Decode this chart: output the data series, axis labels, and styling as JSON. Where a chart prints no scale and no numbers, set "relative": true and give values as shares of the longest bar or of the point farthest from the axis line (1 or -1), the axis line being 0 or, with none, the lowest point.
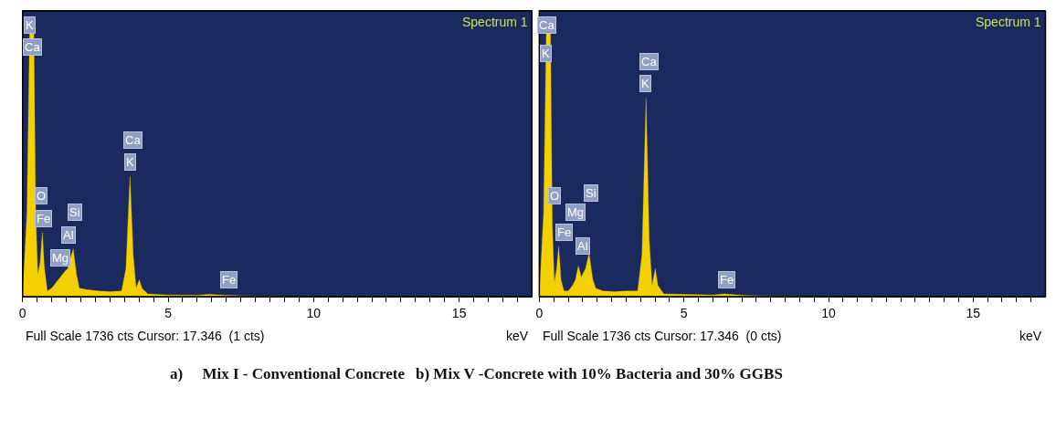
{
  "chart_data": [
    {
      "type": "area",
      "relative": true,
      "xlabel": "keV",
      "xlim": [
        0,
        17.5
      ],
      "xticks": [
        0,
        {
          "value": 0.5,
          "label": null
        },
        {
          "value": 1,
          "label": null
        },
        {
          "value": 1.5,
          "label": null
        },
        {
          "value": 2,
          "label": null
        },
        {
          "value": 2.5,
          "label": null
        },
        {
          "value": 3,
          "label": null
        },
        {
          "value": 3.5,
          "label": null
        },
        {
          "value": 4,
          "label": null
        },
        {
          "value": 4.5,
          "label": null
        },
        5,
        {
          "value": 5.5,
          "label": null
        },
        {
          "value": 6,
          "label": null
        },
        {
          "value": 6.5,
          "label": null
        },
        {
          "value": 7,
          "label": null
        },
        {
          "value": 7.5,
          "label": null
        },
        {
          "value": 8,
          "label": null
        },
        {
          "value": 8.5,
          "label": null
        },
        {
          "value": 9,
          "label": null
        },
        {
          "value": 9.5,
          "label": null
        },
        10,
        {
          "value": 10.5,
          "label": null
        },
        {
          "value": 11,
          "label": null
        },
        {
          "value": 11.5,
          "label": null
        },
        {
          "value": 12,
          "label": null
        },
        {
          "value": 12.5,
          "label": null
        },
        {
          "value": 13,
          "label": null
        },
        {
          "value": 13.5,
          "label": null
        },
        {
          "value": 14,
          "label": null
        },
        {
          "value": 14.5,
          "label": null
        },
        15,
        {
          "value": 15.5,
          "label": null
        },
        {
          "value": 16,
          "label": null
        },
        {
          "value": 16.5,
          "label": null
        },
        {
          "value": 17,
          "label": null
        }
      ],
      "x": [
        0,
        0.15,
        0.25,
        0.38,
        0.45,
        0.52,
        0.6,
        0.68,
        0.75,
        0.85,
        1.0,
        1.15,
        1.3,
        1.45,
        1.55,
        1.65,
        1.74,
        1.85,
        1.95,
        2.2,
        2.6,
        3.0,
        3.4,
        3.55,
        3.69,
        3.8,
        3.9,
        4.01,
        4.1,
        4.3,
        5.0,
        6.0,
        6.4,
        7.0,
        8.0,
        10,
        17.5
      ],
      "series": [
        {
          "color": "#f5d000",
          "values": [
            0,
            0.3,
            1,
            1,
            0.3,
            0.08,
            0.12,
            0.23,
            0.1,
            0.02,
            0.03,
            0.05,
            0.07,
            0.09,
            0.1,
            0.14,
            0.17,
            0.08,
            0.03,
            0.025,
            0.02,
            0.018,
            0.02,
            0.1,
            0.43,
            0.15,
            0.03,
            0.06,
            0.03,
            0.01,
            0.006,
            0.005,
            0.008,
            0.005,
            0.002,
            0,
            0
          ]
        }
      ],
      "annotations": [
        "Spectrum 1",
        "Full Scale 1736 cts Cursor: 17.346  (1 cts)",
        "a)     Mix I - Conventional Concrete",
        {
          "text": "K",
          "x": 0.25,
          "y": 0.97
        },
        {
          "text": "Ca",
          "x": 0.35,
          "y": 0.89
        },
        {
          "text": "O",
          "x": 0.63,
          "y": 0.36
        },
        {
          "text": "Fe",
          "x": 0.7,
          "y": 0.28
        },
        {
          "text": "Si",
          "x": 1.8,
          "y": 0.3
        },
        {
          "text": "Al",
          "x": 1.58,
          "y": 0.22
        },
        {
          "text": "Mg",
          "x": 1.3,
          "y": 0.14
        },
        {
          "text": "Ca",
          "x": 3.78,
          "y": 0.56
        },
        {
          "text": "K",
          "x": 3.7,
          "y": 0.48
        },
        {
          "text": "Fe",
          "x": 7.1,
          "y": 0.06
        }
      ]
    },
    {
      "type": "area",
      "relative": true,
      "xlabel": "keV",
      "xlim": [
        0,
        17.5
      ],
      "xticks": [
        0,
        {
          "value": 0.5,
          "label": null
        },
        {
          "value": 1,
          "label": null
        },
        {
          "value": 1.5,
          "label": null
        },
        {
          "value": 2,
          "label": null
        },
        {
          "value": 2.5,
          "label": null
        },
        {
          "value": 3,
          "label": null
        },
        {
          "value": 3.5,
          "label": null
        },
        {
          "value": 4,
          "label": null
        },
        {
          "value": 4.5,
          "label": null
        },
        5,
        {
          "value": 5.5,
          "label": null
        },
        {
          "value": 6,
          "label": null
        },
        {
          "value": 6.5,
          "label": null
        },
        {
          "value": 7,
          "label": null
        },
        {
          "value": 7.5,
          "label": null
        },
        {
          "value": 8,
          "label": null
        },
        {
          "value": 8.5,
          "label": null
        },
        {
          "value": 9,
          "label": null
        },
        {
          "value": 9.5,
          "label": null
        },
        10,
        {
          "value": 10.5,
          "label": null
        },
        {
          "value": 11,
          "label": null
        },
        {
          "value": 11.5,
          "label": null
        },
        {
          "value": 12,
          "label": null
        },
        {
          "value": 12.5,
          "label": null
        },
        {
          "value": 13,
          "label": null
        },
        {
          "value": 13.5,
          "label": null
        },
        {
          "value": 14,
          "label": null
        },
        {
          "value": 14.5,
          "label": null
        },
        15,
        {
          "value": 15.5,
          "label": null
        },
        {
          "value": 16,
          "label": null
        },
        {
          "value": 16.5,
          "label": null
        },
        {
          "value": 17,
          "label": null
        }
      ],
      "x": [
        0,
        0.15,
        0.25,
        0.38,
        0.45,
        0.52,
        0.6,
        0.67,
        0.75,
        0.85,
        1.0,
        1.15,
        1.25,
        1.35,
        1.45,
        1.6,
        1.72,
        1.85,
        1.95,
        2.2,
        2.6,
        3.0,
        3.4,
        3.55,
        3.69,
        3.8,
        3.9,
        4.01,
        4.1,
        4.3,
        5.0,
        6.0,
        6.4,
        7.0,
        8.0,
        10,
        17.5
      ],
      "series": [
        {
          "color": "#f5d000",
          "values": [
            0,
            0.3,
            1,
            1,
            0.25,
            0.05,
            0.1,
            0.18,
            0.06,
            0.02,
            0.02,
            0.04,
            0.06,
            0.11,
            0.07,
            0.1,
            0.155,
            0.06,
            0.03,
            0.02,
            0.018,
            0.02,
            0.02,
            0.15,
            0.71,
            0.2,
            0.04,
            0.1,
            0.04,
            0.01,
            0.008,
            0.006,
            0.01,
            0.005,
            0.002,
            0,
            0
          ]
        }
      ],
      "annotations": [
        "Spectrum 1",
        "Full Scale 1736 cts Cursor: 17.346  (0 cts)",
        "b) Mix V -Concrete with 10% Bacteria and 30% GGBS",
        {
          "text": "Ca",
          "x": 0.25,
          "y": 0.97
        },
        {
          "text": "K",
          "x": 0.22,
          "y": 0.87
        },
        {
          "text": "Ca",
          "x": 3.8,
          "y": 0.84
        },
        {
          "text": "K",
          "x": 3.66,
          "y": 0.76
        },
        {
          "text": "O",
          "x": 0.54,
          "y": 0.36
        },
        {
          "text": "Si",
          "x": 1.8,
          "y": 0.37
        },
        {
          "text": "Mg",
          "x": 1.26,
          "y": 0.3
        },
        {
          "text": "Fe",
          "x": 0.85,
          "y": 0.23
        },
        {
          "text": "Al",
          "x": 1.5,
          "y": 0.18
        },
        {
          "text": "Fe",
          "x": 6.47,
          "y": 0.06
        }
      ]
    }
  ]
}
